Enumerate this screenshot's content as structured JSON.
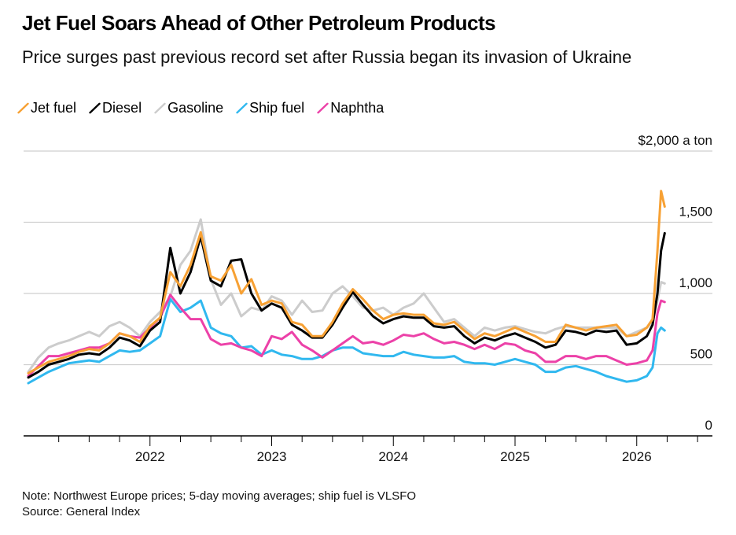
{
  "header": {
    "title": "Jet Fuel Soars Ahead of Other Petroleum Products",
    "subtitle": "Price surges past previous record set after Russia began its invasion of Ukraine"
  },
  "footer": {
    "note": "Note: Northwest Europe prices; 5-day moving averages; ship fuel is VLSFO",
    "source": "Source: General Index"
  },
  "chart_data": {
    "type": "line",
    "title": "Jet Fuel Soars Ahead of Other Petroleum Products",
    "subtitle": "Price surges past previous record set after Russia began its invasion of Ukraine",
    "xlabel": "",
    "ylabel": "$ a ton",
    "unit_label": "$2,000 a ton",
    "ylim": [
      0,
      2000
    ],
    "xlim": [
      2021.0,
      2026.6
    ],
    "yticks": [
      0,
      500,
      1000,
      1500,
      2000
    ],
    "ytick_labels": [
      "0",
      "500",
      "1,000",
      "1,500",
      "$2,000 a ton"
    ],
    "xticks": [
      2022,
      2023,
      2024,
      2025,
      2026
    ],
    "xtick_labels": [
      "2022",
      "2023",
      "2024",
      "2025",
      "2026"
    ],
    "grid": true,
    "legend_position": "top-left",
    "x": [
      2021.0,
      2021.083,
      2021.167,
      2021.25,
      2021.333,
      2021.417,
      2021.5,
      2021.583,
      2021.667,
      2021.75,
      2021.833,
      2021.917,
      2022.0,
      2022.083,
      2022.167,
      2022.25,
      2022.333,
      2022.417,
      2022.5,
      2022.583,
      2022.667,
      2022.75,
      2022.833,
      2022.917,
      2023.0,
      2023.083,
      2023.167,
      2023.25,
      2023.333,
      2023.417,
      2023.5,
      2023.583,
      2023.667,
      2023.75,
      2023.833,
      2023.917,
      2024.0,
      2024.083,
      2024.167,
      2024.25,
      2024.333,
      2024.417,
      2024.5,
      2024.583,
      2024.667,
      2024.75,
      2024.833,
      2024.917,
      2025.0,
      2025.083,
      2025.167,
      2025.25,
      2025.333,
      2025.417,
      2025.5,
      2025.583,
      2025.667,
      2025.75,
      2025.833,
      2025.917,
      2026.0,
      2026.083,
      2026.13,
      2026.17,
      2026.2,
      2026.23
    ],
    "series": [
      {
        "name": "Jet fuel",
        "color": "#f7a134",
        "values": [
          440,
          480,
          520,
          540,
          560,
          590,
          610,
          600,
          650,
          720,
          700,
          660,
          770,
          830,
          1150,
          1050,
          1200,
          1430,
          1120,
          1090,
          1200,
          1000,
          1100,
          920,
          950,
          930,
          800,
          780,
          700,
          700,
          800,
          930,
          1030,
          960,
          880,
          820,
          850,
          860,
          850,
          850,
          790,
          780,
          800,
          740,
          680,
          720,
          700,
          730,
          760,
          730,
          700,
          660,
          660,
          780,
          760,
          740,
          760,
          770,
          780,
          700,
          710,
          760,
          820,
          1300,
          1720,
          1610
        ]
      },
      {
        "name": "Diesel",
        "color": "#000000",
        "values": [
          410,
          450,
          500,
          520,
          540,
          570,
          580,
          570,
          620,
          690,
          670,
          630,
          740,
          800,
          1320,
          1000,
          1150,
          1400,
          1090,
          1050,
          1230,
          1240,
          1000,
          880,
          930,
          900,
          780,
          740,
          690,
          690,
          780,
          900,
          1010,
          920,
          840,
          790,
          820,
          840,
          830,
          830,
          770,
          760,
          770,
          700,
          650,
          690,
          670,
          700,
          720,
          690,
          660,
          620,
          640,
          740,
          730,
          710,
          740,
          730,
          740,
          640,
          650,
          700,
          780,
          1000,
          1300,
          1423
        ]
      },
      {
        "name": "Gasoline",
        "color": "#cccccc",
        "values": [
          450,
          550,
          620,
          650,
          670,
          700,
          730,
          700,
          770,
          800,
          760,
          700,
          800,
          870,
          980,
          1200,
          1300,
          1520,
          1100,
          920,
          1000,
          840,
          900,
          880,
          980,
          950,
          850,
          950,
          870,
          880,
          1000,
          1050,
          980,
          900,
          880,
          900,
          850,
          900,
          930,
          1000,
          900,
          800,
          820,
          760,
          700,
          760,
          740,
          760,
          770,
          750,
          730,
          720,
          750,
          770,
          760,
          760,
          760,
          760,
          760,
          700,
          730,
          760,
          800,
          950,
          1080,
          1070
        ]
      },
      {
        "name": "Ship fuel",
        "color": "#30b8ef",
        "values": [
          370,
          410,
          450,
          480,
          510,
          520,
          530,
          520,
          560,
          600,
          590,
          600,
          650,
          700,
          960,
          870,
          900,
          950,
          760,
          720,
          700,
          620,
          630,
          570,
          600,
          570,
          560,
          540,
          540,
          560,
          600,
          620,
          620,
          580,
          570,
          560,
          560,
          590,
          570,
          560,
          550,
          550,
          560,
          520,
          510,
          510,
          500,
          520,
          540,
          520,
          500,
          450,
          450,
          480,
          490,
          470,
          450,
          420,
          400,
          380,
          390,
          420,
          480,
          720,
          760,
          740
        ]
      },
      {
        "name": "Naphtha",
        "color": "#ec41a8",
        "values": [
          420,
          490,
          560,
          560,
          580,
          600,
          620,
          620,
          650,
          720,
          700,
          690,
          760,
          830,
          990,
          900,
          820,
          820,
          680,
          640,
          650,
          620,
          600,
          560,
          700,
          680,
          730,
          640,
          600,
          550,
          600,
          650,
          700,
          650,
          660,
          640,
          670,
          710,
          700,
          720,
          680,
          650,
          660,
          640,
          610,
          640,
          610,
          650,
          640,
          600,
          580,
          520,
          520,
          560,
          560,
          540,
          560,
          560,
          530,
          500,
          510,
          530,
          600,
          860,
          950,
          940
        ]
      }
    ]
  }
}
